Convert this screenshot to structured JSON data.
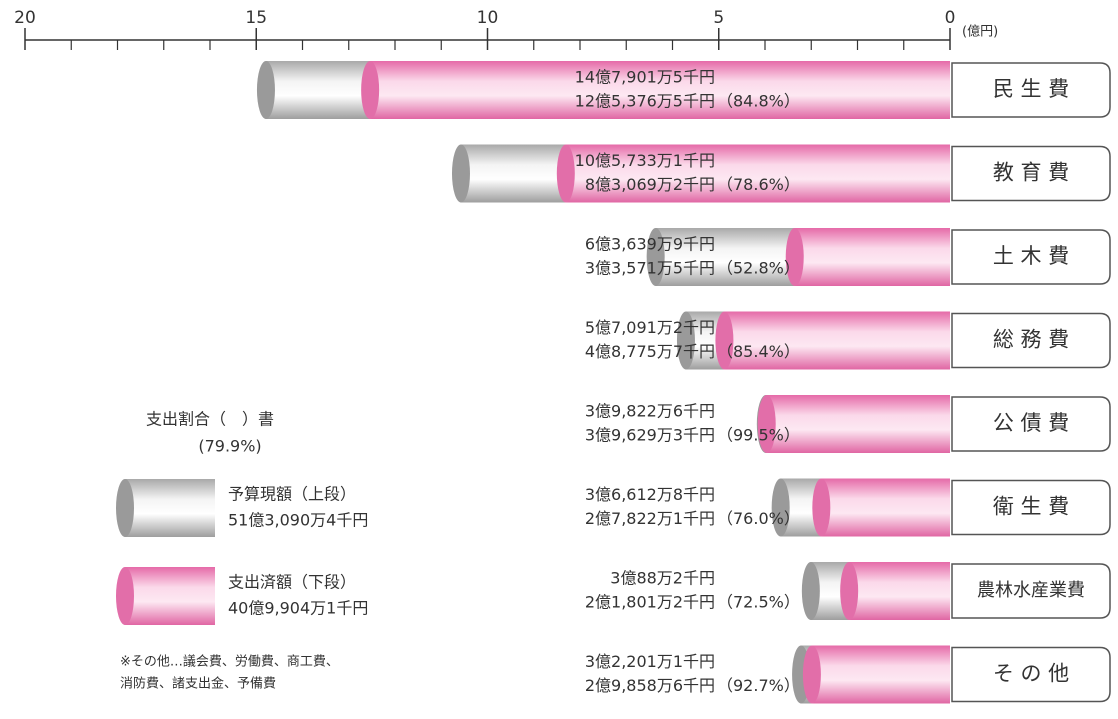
{
  "chart_data": {
    "type": "bar",
    "orientation": "horizontal",
    "unit_label": "(億円)",
    "categories": [
      "民 生 費",
      "教 育 費",
      "土 木 費",
      "総 務 費",
      "公 債 費",
      "衛 生 費",
      "農林水産業費",
      "そ の 他"
    ],
    "series": [
      {
        "name": "予算現額（上段）",
        "color": "#c8c8c8",
        "total_label": "51億3,090万4千円",
        "values": [
          14.79015,
          10.57331,
          6.36399,
          5.70912,
          3.98226,
          3.66128,
          3.00882,
          3.22011
        ],
        "value_labels": [
          "14億7,901万5千円",
          "10億5,733万1千円",
          "6億3,639万9千円",
          "5億7,091万2千円",
          "3億9,822万6千円",
          "3億6,612万8千円",
          "3億88万2千円",
          "3億2,201万1千円"
        ]
      },
      {
        "name": "支出済額（下段）",
        "color": "#f5a6cf",
        "total_label": "40億9,904万1千円",
        "values": [
          12.53765,
          8.30692,
          3.35715,
          4.87757,
          3.96293,
          2.78221,
          2.18012,
          2.98586
        ],
        "value_labels": [
          "12億5,376万5千円",
          "8億3,069万2千円",
          "3億3,571万5千円",
          "4億8,775万7千円",
          "3億9,629万3千円",
          "2億7,822万1千円",
          "2億1,801万2千円",
          "2億9,858万6千円"
        ]
      }
    ],
    "ratio_labels": [
      "（84.8%）",
      "（78.6%）",
      "（52.8%）",
      "（85.4%）",
      "（99.5%）",
      "（76.0%）",
      "（72.5%）",
      "（92.7%）"
    ],
    "ratio_title": "支出割合（　）書",
    "ratio_total": "(79.9%)",
    "note": [
      "※その他…議会費、労働費、商工費、",
      "消防費、諸支出金、予備費"
    ],
    "xlim": [
      20,
      0
    ],
    "xticks": [
      20,
      15,
      10,
      5,
      0
    ],
    "xticks_minor": [
      19,
      18,
      17,
      16,
      14,
      13,
      12,
      11,
      9,
      8,
      7,
      6,
      4,
      3,
      2,
      1
    ]
  }
}
